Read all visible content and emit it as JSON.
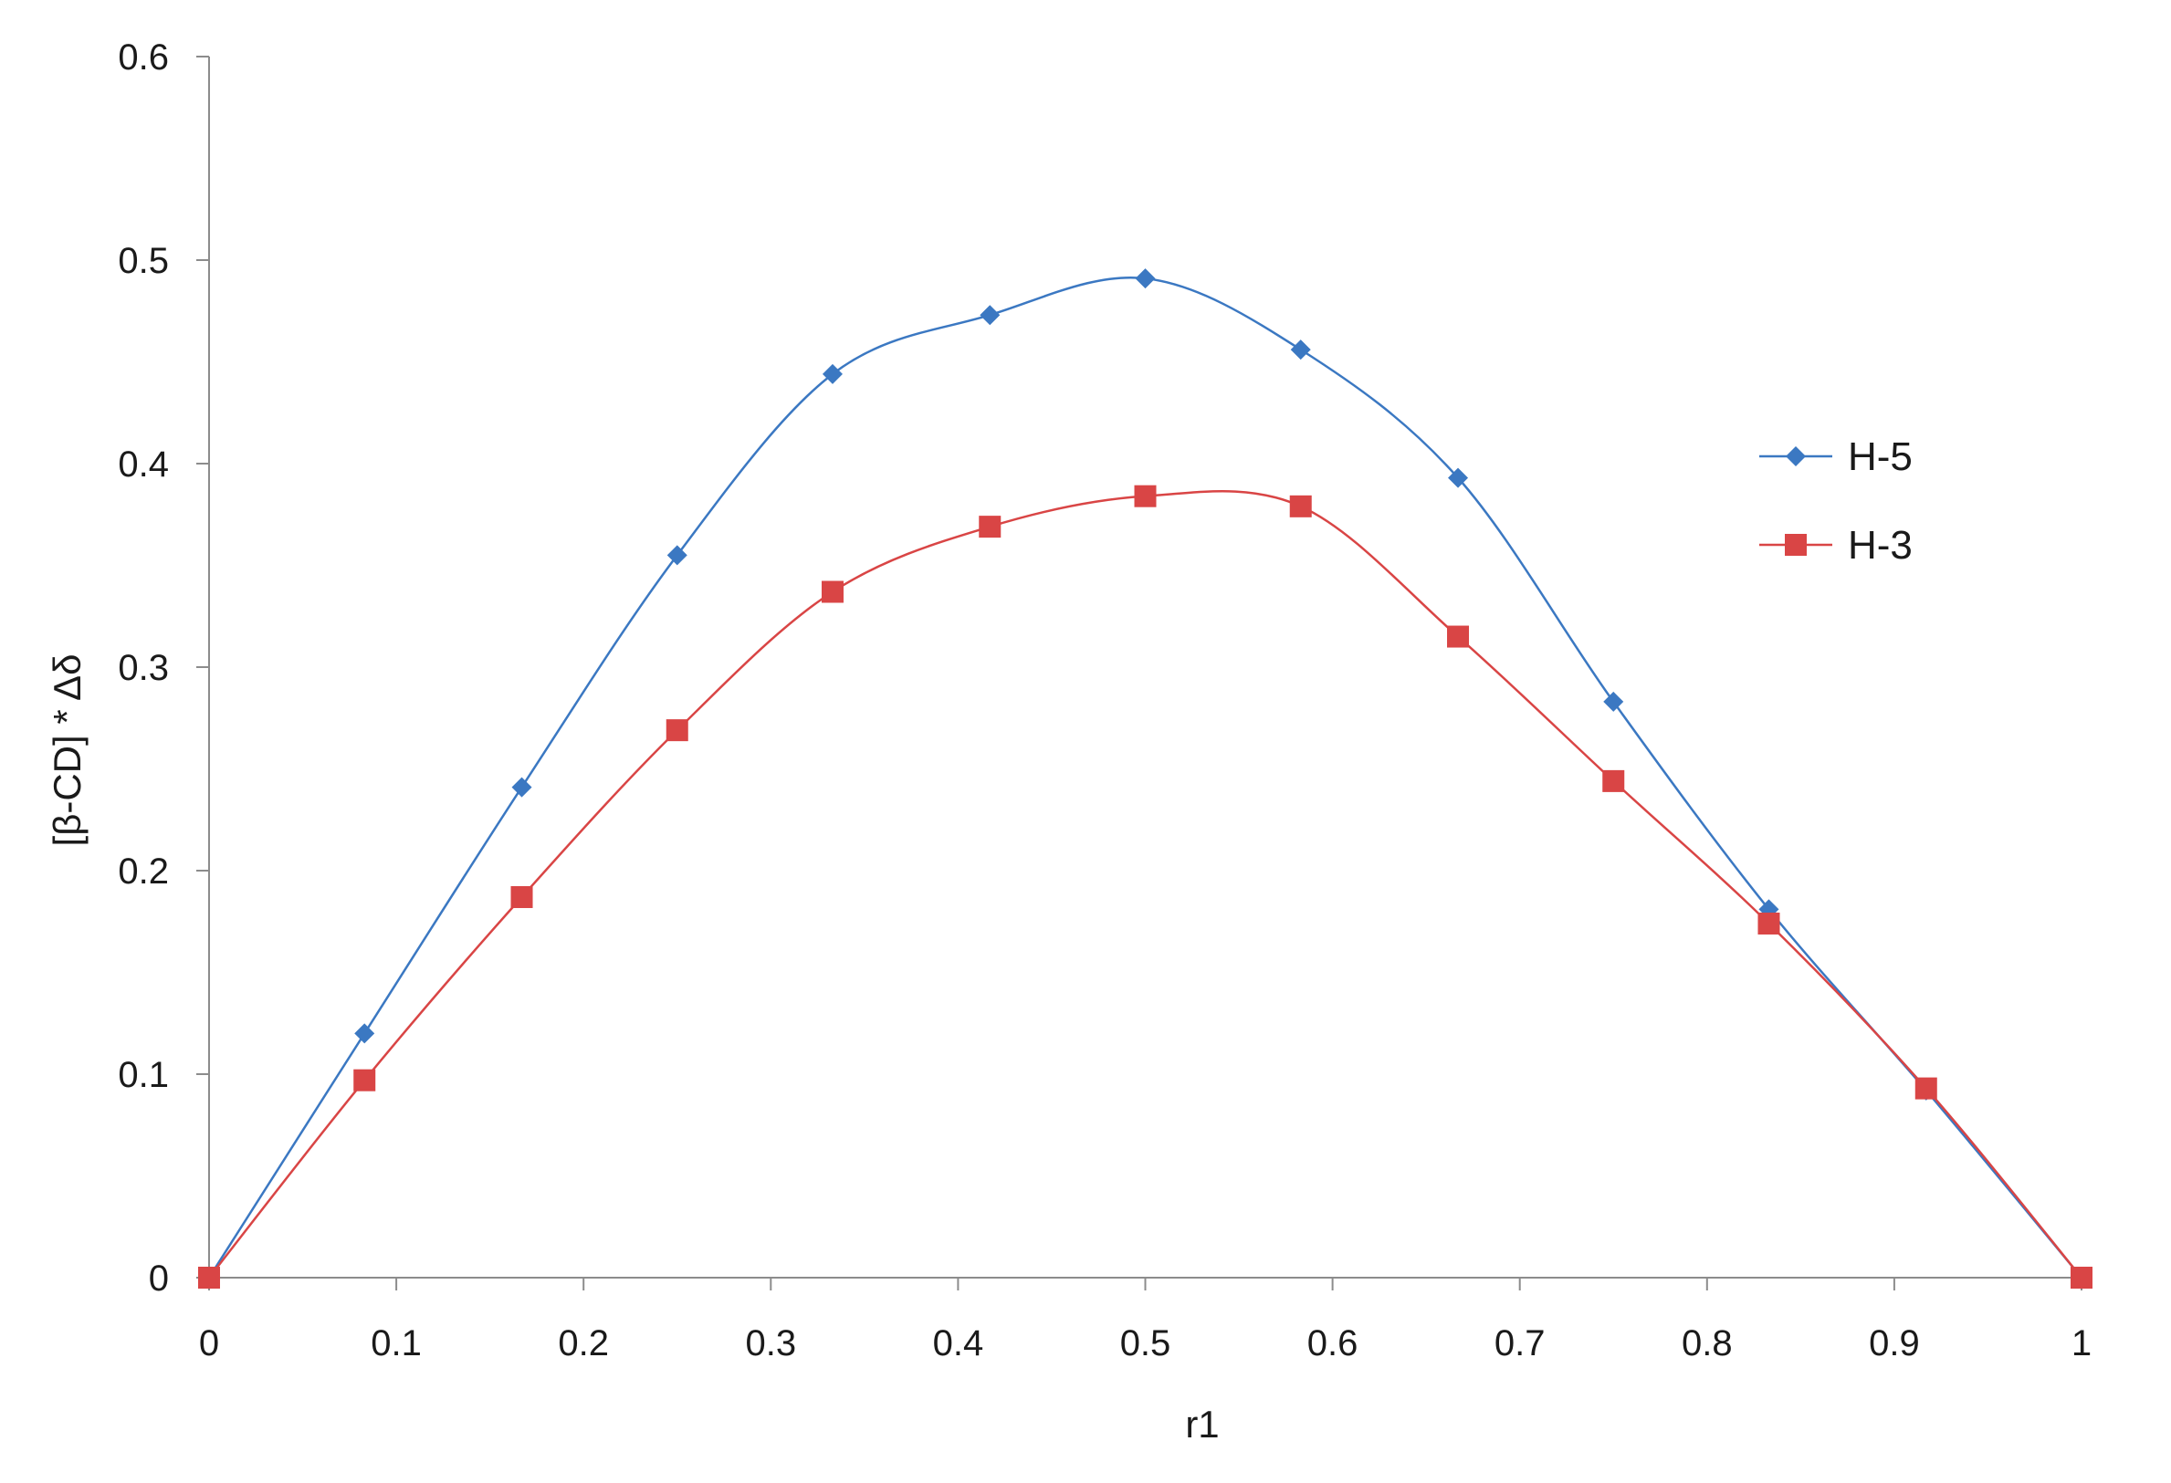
{
  "chart_data": {
    "type": "line",
    "title": "",
    "xlabel": "r1",
    "ylabel": "[β-CD] * Δδ",
    "xlim": [
      0,
      1
    ],
    "ylim": [
      0,
      0.6
    ],
    "xticks": [
      0,
      0.1,
      0.2,
      0.3,
      0.4,
      0.5,
      0.6,
      0.7,
      0.8,
      0.9,
      1
    ],
    "xtick_labels": [
      "0",
      "0.1",
      "0.2",
      "0.3",
      "0.4",
      "0.5",
      "0.6",
      "0.7",
      "0.8",
      "0.9",
      "1"
    ],
    "yticks": [
      0,
      0.1,
      0.2,
      0.3,
      0.4,
      0.5,
      0.6
    ],
    "ytick_labels": [
      "0",
      "0.1",
      "0.2",
      "0.3",
      "0.4",
      "0.5",
      "0.6"
    ],
    "grid": false,
    "legend_position": "right",
    "smoothed": true,
    "series": [
      {
        "name": "H-5",
        "color": "#3b78c2",
        "marker": "diamond",
        "x": [
          0,
          0.083,
          0.167,
          0.25,
          0.333,
          0.417,
          0.5,
          0.583,
          0.667,
          0.75,
          0.833,
          0.917,
          1
        ],
        "y": [
          0,
          0.12,
          0.241,
          0.355,
          0.444,
          0.473,
          0.491,
          0.456,
          0.393,
          0.283,
          0.181,
          0.092,
          0
        ]
      },
      {
        "name": "H-3",
        "color": "#d94545",
        "marker": "square",
        "x": [
          0,
          0.083,
          0.167,
          0.25,
          0.333,
          0.417,
          0.5,
          0.583,
          0.667,
          0.75,
          0.833,
          0.917,
          1
        ],
        "y": [
          0,
          0.097,
          0.187,
          0.269,
          0.337,
          0.369,
          0.384,
          0.379,
          0.315,
          0.244,
          0.174,
          0.093,
          0
        ]
      }
    ]
  }
}
